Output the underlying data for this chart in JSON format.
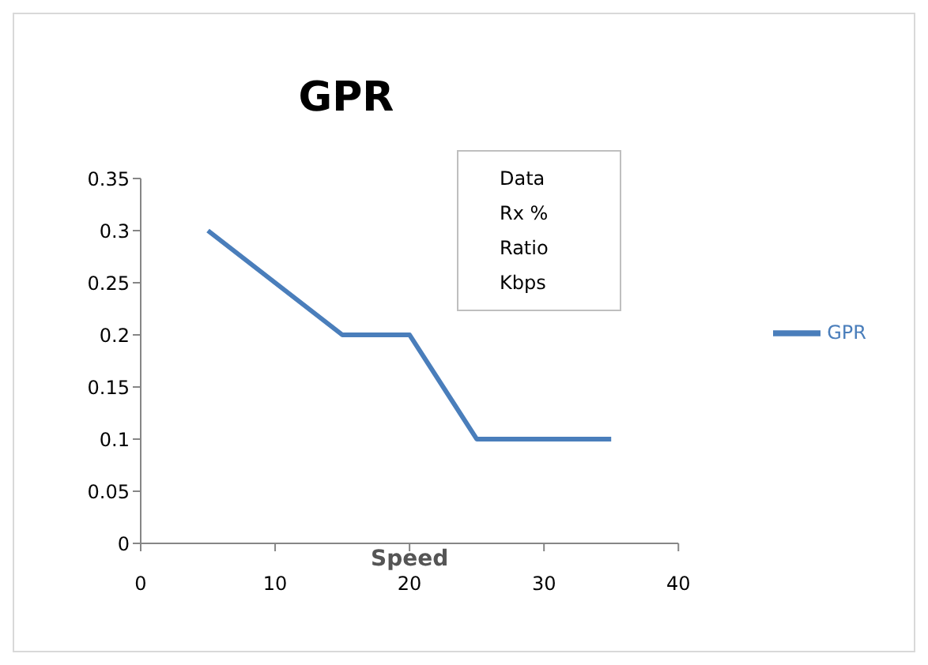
{
  "chart_data": {
    "type": "line",
    "title": "GPR",
    "xlabel": "Speed",
    "x": [
      5,
      15,
      20,
      25,
      35
    ],
    "series": [
      {
        "name": "GPR",
        "color": "#4a7ebb",
        "values": [
          0.3,
          0.2,
          0.2,
          0.1,
          0.1
        ]
      }
    ],
    "xlim": [
      0,
      40
    ],
    "xticks": [
      0,
      10,
      20,
      30,
      40
    ],
    "ylim": [
      0,
      0.35
    ],
    "yticks": [
      0,
      0.05,
      0.1,
      0.15,
      0.2,
      0.25,
      0.3,
      0.35
    ],
    "annotations": [
      "Data\nRx %\nRatio\nKbps"
    ],
    "grid": false,
    "legend": "right",
    "marker": "none",
    "line_style": "solid"
  }
}
